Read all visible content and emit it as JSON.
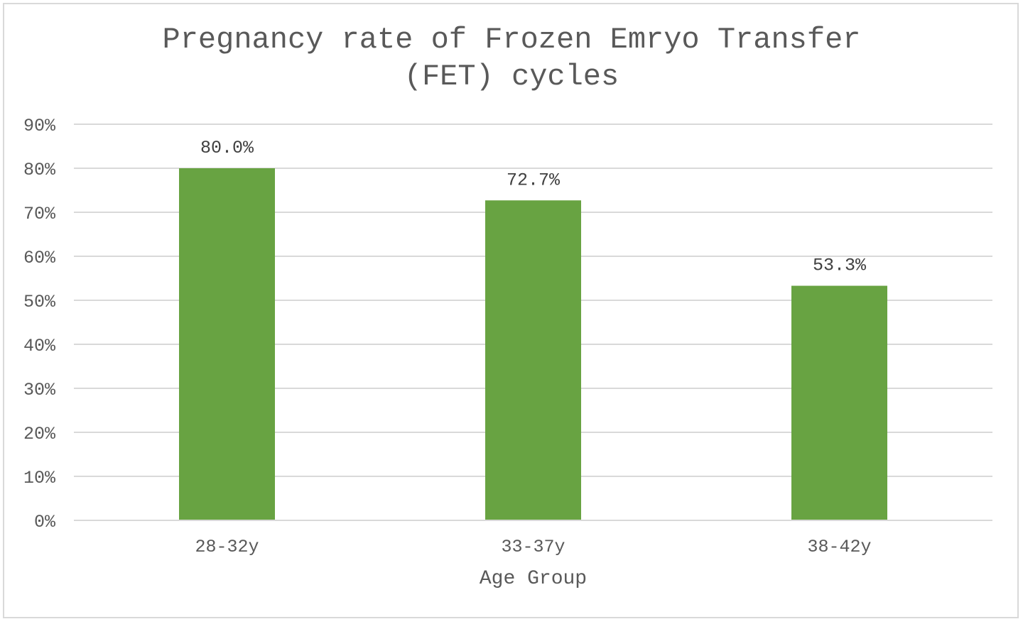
{
  "chart_data": {
    "type": "bar",
    "title_lines": [
      "Pregnancy rate of Frozen Emryo Transfer",
      "(FET) cycles"
    ],
    "xlabel": "Age Group",
    "ylabel": "",
    "categories": [
      "28-32y",
      "33-37y",
      "38-42y"
    ],
    "values": [
      80.0,
      72.7,
      53.3
    ],
    "data_labels": [
      "80.0%",
      "72.7%",
      "53.3%"
    ],
    "ylim": [
      0,
      90
    ],
    "yticks": [
      0,
      10,
      20,
      30,
      40,
      50,
      60,
      70,
      80,
      90
    ],
    "ytick_labels": [
      "0%",
      "10%",
      "20%",
      "30%",
      "40%",
      "50%",
      "60%",
      "70%",
      "80%",
      "90%"
    ],
    "grid": true,
    "legend": "none",
    "bar_color": "#68a342",
    "grid_color": "#d9d9d9"
  }
}
